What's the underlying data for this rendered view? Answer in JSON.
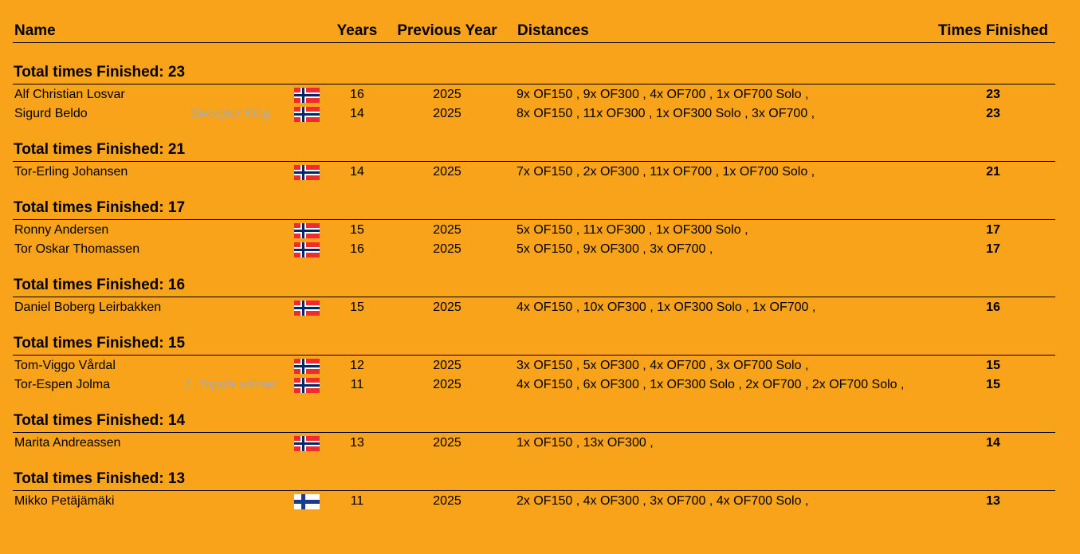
{
  "header": {
    "columns": [
      "Name",
      "Years",
      "Previous Year",
      "Distances",
      "Times Finished"
    ]
  },
  "groups": [
    {
      "title": "Total times Finished: 23",
      "rows": [
        {
          "name": "Alf Christian Losvar",
          "flag": "norway",
          "years": 16,
          "previous_year": 2025,
          "distances": "9x OF150 , 9x OF300 , 4x OF700 , 1x OF700 Solo ,",
          "times": 23
        },
        {
          "name": "Sigurd Beldo",
          "note": "Sweeper King",
          "flag": "norway",
          "years": 14,
          "previous_year": 2025,
          "distances": "8x OF150 , 11x OF300 , 1x OF300 Solo , 3x OF700 ,",
          "times": 23
        }
      ]
    },
    {
      "title": "Total times Finished: 21",
      "rows": [
        {
          "name": "Tor-Erling Johansen",
          "flag": "norway",
          "years": 14,
          "previous_year": 2025,
          "distances": "7x OF150 , 2x OF300 , 11x OF700 , 1x OF700 Solo ,",
          "times": 21
        }
      ]
    },
    {
      "title": "Total times Finished: 17",
      "rows": [
        {
          "name": "Ronny Andersen",
          "flag": "norway",
          "years": 15,
          "previous_year": 2025,
          "distances": "5x OF150 , 11x OF300 , 1x OF300 Solo ,",
          "times": 17
        },
        {
          "name": "Tor Oskar Thomassen",
          "flag": "norway",
          "years": 16,
          "previous_year": 2025,
          "distances": "5x OF150 , 9x OF300 , 3x OF700 ,",
          "times": 17
        }
      ]
    },
    {
      "title": "Total times Finished: 16",
      "rows": [
        {
          "name": "Daniel Boberg Leirbakken",
          "flag": "norway",
          "years": 15,
          "previous_year": 2025,
          "distances": "4x OF150 , 10x OF300 , 1x OF300 Solo , 1x OF700 ,",
          "times": 16
        }
      ]
    },
    {
      "title": "Total times Finished: 15",
      "rows": [
        {
          "name": "Tom-Viggo Vårdal",
          "flag": "norway",
          "years": 12,
          "previous_year": 2025,
          "distances": "3x OF150 , 5x OF300 , 4x OF700 , 3x OF700 Solo ,",
          "times": 15
        },
        {
          "name": "Tor-Espen Jolma",
          "note": "1. Tripple winner",
          "flag": "norway",
          "years": 11,
          "previous_year": 2025,
          "distances": "4x OF150 , 6x OF300 , 1x OF300 Solo , 2x OF700 , 2x OF700 Solo ,",
          "times": 15
        }
      ]
    },
    {
      "title": "Total times Finished: 14",
      "rows": [
        {
          "name": "Marita Andreassen",
          "flag": "norway",
          "years": 13,
          "previous_year": 2025,
          "distances": "1x OF150 , 13x OF300 ,",
          "times": 14
        }
      ]
    },
    {
      "title": "Total times Finished: 13",
      "rows": [
        {
          "name": "Mikko Petäjämäki",
          "flag": "finland",
          "years": 11,
          "previous_year": 2025,
          "distances": "2x OF150 , 4x OF300 , 3x OF700 , 4x OF700 Solo ,",
          "times": 13
        }
      ]
    }
  ]
}
